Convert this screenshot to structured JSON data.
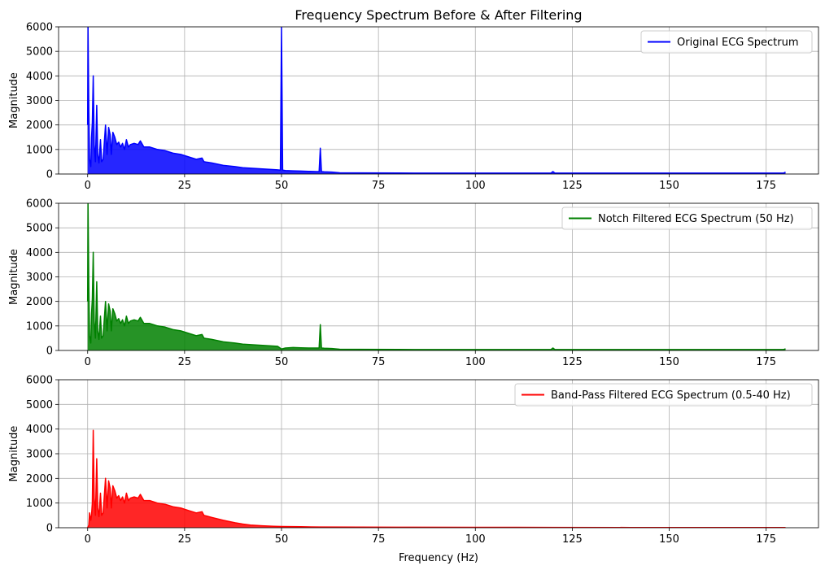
{
  "figure": {
    "title": "Frequency Spectrum Before & After Filtering",
    "xlabel": "Frequency (Hz)"
  },
  "chart_data": [
    {
      "type": "line",
      "title": "Frequency Spectrum Before & After Filtering",
      "xlabel": "",
      "ylabel": "Magnitude",
      "xlim": [
        -7.5,
        188.5
      ],
      "ylim": [
        0,
        6000
      ],
      "xticks": [
        0,
        25,
        50,
        75,
        100,
        125,
        150,
        175
      ],
      "yticks": [
        0,
        1000,
        2000,
        3000,
        4000,
        5000,
        6000
      ],
      "grid": true,
      "legend_position": "top-right",
      "series": [
        {
          "name": "Original ECG Spectrum",
          "color": "#0000ff",
          "x": [
            0,
            0.1,
            0.3,
            0.5,
            0.8,
            1.0,
            1.2,
            1.45,
            1.7,
            2.0,
            2.35,
            2.6,
            2.9,
            3.3,
            3.6,
            4.0,
            4.6,
            5.0,
            5.4,
            5.8,
            6.1,
            6.5,
            7.0,
            7.5,
            8.0,
            8.5,
            9.0,
            9.5,
            10.0,
            10.5,
            11.0,
            12.0,
            13.0,
            13.6,
            14.5,
            16.0,
            18.0,
            20.0,
            22.0,
            24.0,
            26.0,
            28.0,
            29.5,
            30.0,
            32.0,
            35.0,
            38.0,
            40.0,
            43.0,
            46.0,
            49.0,
            49.7,
            50.0,
            50.3,
            51.0,
            53.0,
            55.0,
            57.0,
            59.0,
            59.7,
            60.0,
            60.3,
            61.0,
            63.0,
            65.0,
            70.0,
            80.0,
            90.0,
            100.0,
            110.0,
            119.5,
            120.0,
            120.5,
            130.0,
            140.0,
            150.0,
            160.0,
            170.0,
            179.5,
            180.0
          ],
          "values": [
            2000,
            6000,
            2600,
            600,
            300,
            1500,
            2100,
            4000,
            1200,
            500,
            2800,
            800,
            450,
            1400,
            500,
            600,
            2000,
            800,
            1900,
            1600,
            800,
            1700,
            1500,
            1200,
            1300,
            1100,
            1250,
            1000,
            1400,
            1100,
            1200,
            1250,
            1200,
            1350,
            1100,
            1100,
            1000,
            950,
            850,
            800,
            700,
            600,
            650,
            500,
            450,
            350,
            300,
            260,
            230,
            200,
            170,
            160,
            6000,
            160,
            140,
            130,
            120,
            110,
            100,
            100,
            1050,
            100,
            90,
            80,
            50,
            45,
            40,
            35,
            35,
            35,
            40,
            100,
            40,
            35,
            35,
            35,
            35,
            35,
            35,
            80
          ]
        }
      ]
    },
    {
      "type": "line",
      "title": "",
      "xlabel": "",
      "ylabel": "Magnitude",
      "xlim": [
        -7.5,
        188.5
      ],
      "ylim": [
        0,
        6000
      ],
      "xticks": [
        0,
        25,
        50,
        75,
        100,
        125,
        150,
        175
      ],
      "yticks": [
        0,
        1000,
        2000,
        3000,
        4000,
        5000,
        6000
      ],
      "grid": true,
      "legend_position": "top-right",
      "series": [
        {
          "name": "Notch Filtered ECG Spectrum (50 Hz)",
          "color": "#008000",
          "x": [
            0,
            0.1,
            0.3,
            0.5,
            0.8,
            1.0,
            1.2,
            1.45,
            1.7,
            2.0,
            2.35,
            2.6,
            2.9,
            3.3,
            3.6,
            4.0,
            4.6,
            5.0,
            5.4,
            5.8,
            6.1,
            6.5,
            7.0,
            7.5,
            8.0,
            8.5,
            9.0,
            9.5,
            10.0,
            10.5,
            11.0,
            12.0,
            13.0,
            13.6,
            14.5,
            16.0,
            18.0,
            20.0,
            22.0,
            24.0,
            26.0,
            28.0,
            29.5,
            30.0,
            32.0,
            35.0,
            38.0,
            40.0,
            43.0,
            46.0,
            49.0,
            50.0,
            51.0,
            53.0,
            55.0,
            57.0,
            59.0,
            59.7,
            60.0,
            60.3,
            61.0,
            63.0,
            65.0,
            70.0,
            80.0,
            90.0,
            100.0,
            110.0,
            119.5,
            120.0,
            120.5,
            130.0,
            140.0,
            150.0,
            160.0,
            170.0,
            179.5,
            180.0
          ],
          "values": [
            2000,
            6000,
            2600,
            600,
            300,
            1500,
            2100,
            4000,
            1200,
            500,
            2800,
            800,
            450,
            1400,
            500,
            600,
            2000,
            800,
            1900,
            1600,
            800,
            1700,
            1500,
            1200,
            1300,
            1100,
            1250,
            1000,
            1400,
            1100,
            1200,
            1250,
            1200,
            1350,
            1100,
            1100,
            1000,
            950,
            850,
            800,
            700,
            600,
            650,
            500,
            450,
            350,
            300,
            260,
            230,
            200,
            170,
            60,
            100,
            120,
            110,
            100,
            100,
            100,
            1050,
            100,
            90,
            80,
            50,
            45,
            40,
            35,
            35,
            35,
            40,
            100,
            40,
            35,
            35,
            35,
            35,
            35,
            35,
            70
          ]
        }
      ]
    },
    {
      "type": "line",
      "title": "",
      "xlabel": "Frequency (Hz)",
      "ylabel": "Magnitude",
      "xlim": [
        -7.5,
        188.5
      ],
      "ylim": [
        0,
        6000
      ],
      "xticks": [
        0,
        25,
        50,
        75,
        100,
        125,
        150,
        175
      ],
      "yticks": [
        0,
        1000,
        2000,
        3000,
        4000,
        5000,
        6000
      ],
      "grid": true,
      "legend_position": "top-right",
      "series": [
        {
          "name": "Band-Pass Filtered ECG Spectrum (0.5-40 Hz)",
          "color": "#ff0000",
          "x": [
            0,
            0.3,
            0.5,
            0.8,
            1.0,
            1.2,
            1.45,
            1.7,
            2.0,
            2.35,
            2.6,
            2.9,
            3.3,
            3.6,
            4.0,
            4.6,
            5.0,
            5.4,
            5.8,
            6.1,
            6.5,
            7.0,
            7.5,
            8.0,
            8.5,
            9.0,
            9.5,
            10.0,
            10.5,
            11.0,
            12.0,
            13.0,
            13.6,
            14.5,
            16.0,
            18.0,
            20.0,
            22.0,
            24.0,
            26.0,
            28.0,
            29.5,
            30.0,
            32.0,
            35.0,
            38.0,
            40.0,
            42.0,
            45.0,
            48.0,
            50.0,
            55.0,
            60.0,
            70.0,
            80.0,
            100.0,
            120.0,
            140.0,
            160.0,
            180.0
          ],
          "values": [
            0,
            100,
            600,
            300,
            500,
            1000,
            3950,
            1200,
            500,
            2800,
            800,
            450,
            1400,
            500,
            600,
            2000,
            800,
            1900,
            1600,
            800,
            1700,
            1500,
            1200,
            1300,
            1100,
            1250,
            1000,
            1400,
            1100,
            1200,
            1250,
            1200,
            1350,
            1100,
            1100,
            1000,
            950,
            850,
            800,
            700,
            600,
            650,
            500,
            420,
            300,
            200,
            150,
            110,
            80,
            60,
            50,
            40,
            30,
            25,
            20,
            15,
            12,
            10,
            10,
            10
          ]
        }
      ]
    }
  ]
}
